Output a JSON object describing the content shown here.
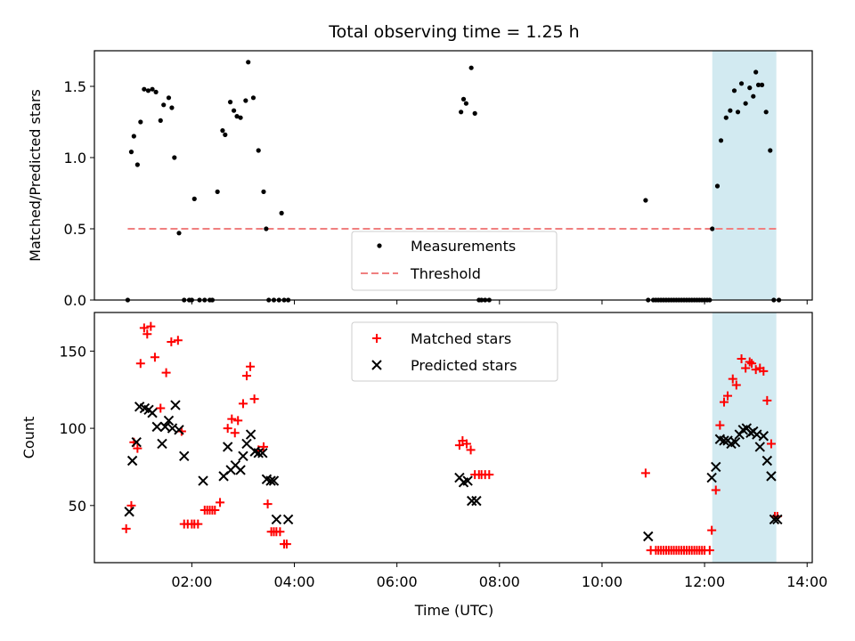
{
  "title": "Total observing time = 1.25 h",
  "xlabel": "Time (UTC)",
  "colors": {
    "measurement": "#000000",
    "threshold": "#f08080",
    "matched": "#ff0000",
    "predicted": "#000000",
    "highlight": "#add8e6"
  },
  "chart_data": [
    {
      "type": "scatter",
      "ylabel": "Matched/Predicted stars",
      "xlim": [
        0.1,
        14.1
      ],
      "ylim": [
        0,
        1.75
      ],
      "yticks": [
        0,
        0.5,
        1.0,
        1.5
      ],
      "ytick_labels": [
        "0.0",
        "0.5",
        "1.0",
        "1.5"
      ],
      "highlight_span": [
        12.15,
        13.4
      ],
      "legend": {
        "position": "lower-center",
        "entries": [
          "Measurements",
          "Threshold"
        ]
      },
      "threshold": {
        "name": "Threshold",
        "x": [
          0.75,
          13.45
        ],
        "y": 0.5
      },
      "series": [
        {
          "name": "Measurements",
          "x": [
            0.75,
            0.82,
            0.87,
            0.94,
            1.0,
            1.07,
            1.15,
            1.23,
            1.3,
            1.39,
            1.45,
            1.55,
            1.61,
            1.66,
            1.75,
            1.85,
            1.95,
            2.0,
            2.05,
            2.15,
            2.25,
            2.35,
            2.4,
            2.5,
            2.6,
            2.65,
            2.75,
            2.82,
            2.88,
            2.95,
            3.05,
            3.1,
            3.2,
            3.3,
            3.4,
            3.45,
            3.5,
            3.6,
            3.7,
            3.75,
            3.8,
            3.88,
            7.25,
            7.3,
            7.35,
            7.45,
            7.52,
            7.6,
            7.65,
            7.72,
            7.8,
            10.85,
            10.9,
            11.0,
            11.05,
            11.1,
            11.15,
            11.2,
            11.25,
            11.3,
            11.35,
            11.4,
            11.45,
            11.5,
            11.55,
            11.6,
            11.65,
            11.7,
            11.75,
            11.8,
            11.85,
            11.9,
            11.95,
            12.0,
            12.05,
            12.1,
            12.15,
            12.25,
            12.32,
            12.42,
            12.5,
            12.58,
            12.65,
            12.72,
            12.8,
            12.88,
            12.95,
            13.0,
            13.05,
            13.12,
            13.2,
            13.28,
            13.35,
            13.45
          ],
          "y": [
            0,
            1.04,
            1.15,
            0.95,
            1.25,
            1.48,
            1.47,
            1.48,
            1.46,
            1.26,
            1.37,
            1.42,
            1.35,
            1.0,
            0.47,
            0,
            0,
            0,
            0.71,
            0,
            0,
            0,
            0,
            0.76,
            1.19,
            1.16,
            1.39,
            1.33,
            1.29,
            1.28,
            1.4,
            1.67,
            1.42,
            1.05,
            0.76,
            0.5,
            0,
            0,
            0,
            0.61,
            0,
            0,
            1.32,
            1.41,
            1.38,
            1.63,
            1.31,
            0,
            0,
            0,
            0,
            0.7,
            0,
            0,
            0,
            0,
            0,
            0,
            0,
            0,
            0,
            0,
            0,
            0,
            0,
            0,
            0,
            0,
            0,
            0,
            0,
            0,
            0,
            0,
            0,
            0,
            0.5,
            0.8,
            1.12,
            1.28,
            1.33,
            1.47,
            1.32,
            1.52,
            1.38,
            1.49,
            1.43,
            1.6,
            1.51,
            1.51,
            1.32,
            1.05,
            0,
            0
          ]
        }
      ]
    },
    {
      "type": "scatter",
      "ylabel": "Count",
      "xlim": [
        0.1,
        14.1
      ],
      "ylim": [
        13,
        175
      ],
      "yticks": [
        50,
        100,
        150
      ],
      "ytick_labels": [
        "50",
        "100",
        "150"
      ],
      "xticks": [
        2,
        4,
        6,
        8,
        10,
        12,
        14
      ],
      "xtick_labels": [
        "02:00",
        "04:00",
        "06:00",
        "08:00",
        "10:00",
        "12:00",
        "14:00"
      ],
      "highlight_span": [
        12.15,
        13.4
      ],
      "legend": {
        "position": "upper-center",
        "entries": [
          "Matched stars",
          "Predicted stars"
        ]
      },
      "series": [
        {
          "name": "Matched stars",
          "marker": "plus",
          "x": [
            0.72,
            0.82,
            0.87,
            0.94,
            1.0,
            1.07,
            1.13,
            1.2,
            1.28,
            1.39,
            1.5,
            1.6,
            1.73,
            1.8,
            1.85,
            1.92,
            2.0,
            2.05,
            2.12,
            2.25,
            2.3,
            2.35,
            2.4,
            2.45,
            2.55,
            2.7,
            2.78,
            2.84,
            2.9,
            3.0,
            3.07,
            3.14,
            3.22,
            3.3,
            3.4,
            3.48,
            3.55,
            3.6,
            3.65,
            3.72,
            3.8,
            3.85,
            7.22,
            7.28,
            7.36,
            7.44,
            7.52,
            7.6,
            7.65,
            7.72,
            7.8,
            10.85,
            10.95,
            11.05,
            11.1,
            11.15,
            11.2,
            11.25,
            11.3,
            11.35,
            11.4,
            11.45,
            11.5,
            11.55,
            11.6,
            11.65,
            11.7,
            11.75,
            11.8,
            11.85,
            11.9,
            11.95,
            12.0,
            12.1,
            12.14,
            12.22,
            12.3,
            12.38,
            12.45,
            12.55,
            12.62,
            12.72,
            12.8,
            12.88,
            12.92,
            13.0,
            13.08,
            13.15,
            13.22,
            13.3,
            13.37,
            13.42
          ],
          "y": [
            35,
            50,
            91,
            87,
            142,
            165,
            161,
            166,
            146,
            113,
            136,
            156,
            157,
            98,
            38,
            38,
            38,
            38,
            38,
            47,
            47,
            47,
            47,
            47,
            52,
            100,
            106,
            97,
            105,
            116,
            134,
            140,
            119,
            86,
            88,
            51,
            33,
            33,
            33,
            33,
            25,
            25,
            89,
            92,
            90,
            86,
            70,
            70,
            70,
            70,
            70,
            71,
            21,
            21,
            21,
            21,
            21,
            21,
            21,
            21,
            21,
            21,
            21,
            21,
            21,
            21,
            21,
            21,
            21,
            21,
            21,
            21,
            21,
            21,
            34,
            60,
            102,
            117,
            121,
            132,
            128,
            145,
            139,
            143,
            142,
            138,
            139,
            137,
            118,
            90,
            43,
            43
          ]
        },
        {
          "name": "Predicted stars",
          "marker": "x",
          "x": [
            0.78,
            0.84,
            0.92,
            0.98,
            1.08,
            1.16,
            1.23,
            1.32,
            1.42,
            1.48,
            1.55,
            1.62,
            1.68,
            1.75,
            1.85,
            2.22,
            2.62,
            2.7,
            2.76,
            2.85,
            2.95,
            3.0,
            3.07,
            3.15,
            3.23,
            3.3,
            3.38,
            3.46,
            3.54,
            3.6,
            3.65,
            3.88,
            7.22,
            7.3,
            7.38,
            7.46,
            7.55,
            10.9,
            12.14,
            12.22,
            12.3,
            12.38,
            12.45,
            12.52,
            12.6,
            12.68,
            12.75,
            12.82,
            12.9,
            12.95,
            13.02,
            13.08,
            13.15,
            13.22,
            13.3,
            13.36,
            13.42
          ],
          "y": [
            46,
            79,
            91,
            114,
            113,
            112,
            110,
            101,
            90,
            101,
            105,
            100,
            115,
            99,
            82,
            66,
            69,
            88,
            73,
            76,
            73,
            82,
            90,
            96,
            85,
            84,
            84,
            67,
            66,
            66,
            41,
            41,
            68,
            65,
            66,
            53,
            53,
            30,
            68,
            75,
            93,
            92,
            92,
            90,
            91,
            96,
            99,
            100,
            97,
            98,
            96,
            88,
            95,
            79,
            69,
            41,
            41
          ]
        }
      ]
    }
  ]
}
